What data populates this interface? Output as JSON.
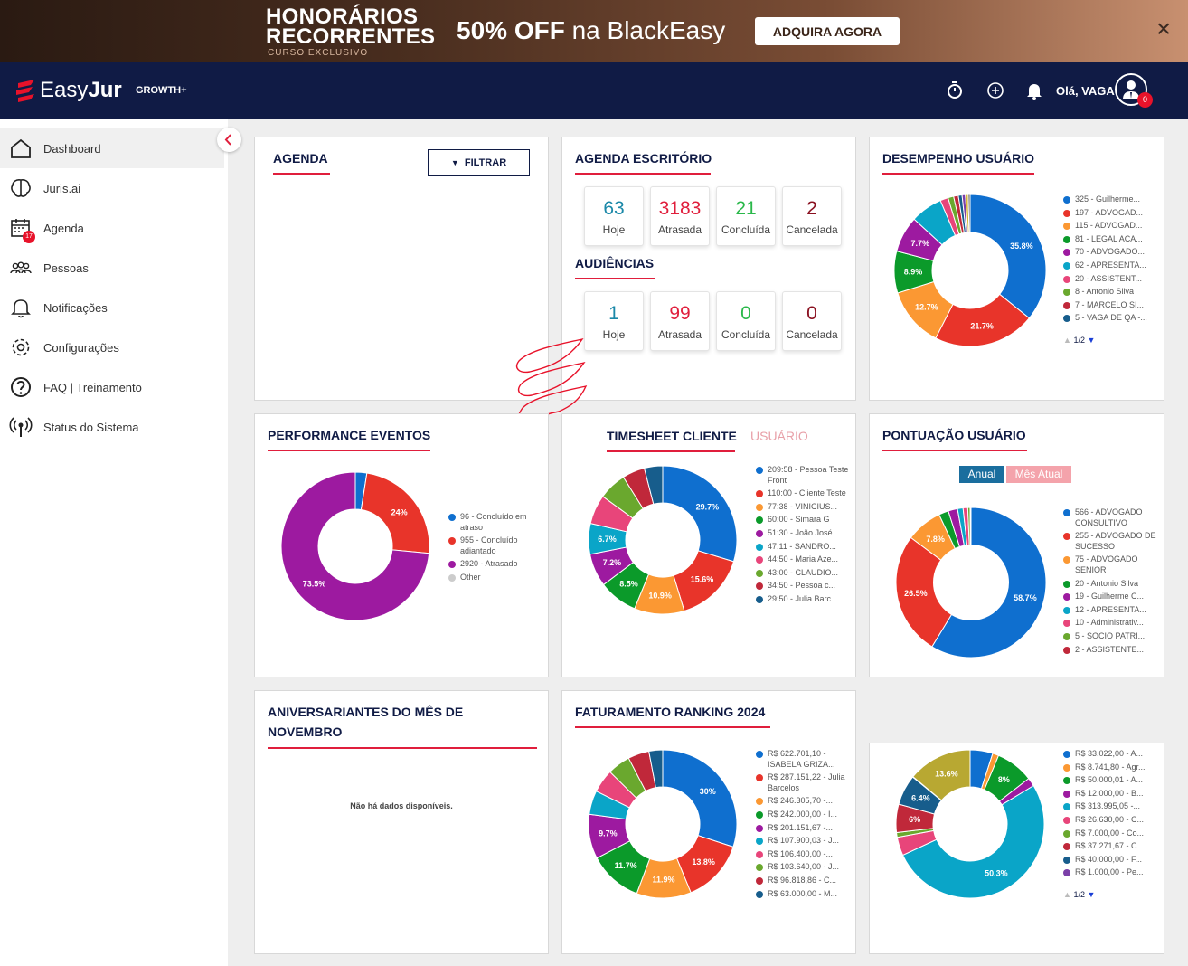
{
  "promo": {
    "title_line1": "HONORÁRIOS",
    "title_line2": "RECORRENTES",
    "subtitle": "CURSO EXCLUSIVO",
    "offer_bold": "50% OFF",
    "offer_rest": " na BlackEasy",
    "cta": "ADQUIRA AGORA",
    "close": "×"
  },
  "header": {
    "logo_light": "Easy",
    "logo_bold": "Jur",
    "plan": "GROWTH+",
    "greeting": "Olá, VAGA",
    "avatar_badge": "0"
  },
  "sidebar": {
    "items": [
      {
        "label": "Dashboard"
      },
      {
        "label": "Juris.ai"
      },
      {
        "label": "Agenda",
        "badge": "17"
      },
      {
        "label": "Pessoas"
      },
      {
        "label": "Notificações"
      },
      {
        "label": "Configurações"
      },
      {
        "label": "FAQ | Treinamento"
      },
      {
        "label": "Status do Sistema"
      }
    ]
  },
  "agenda": {
    "title": "AGENDA",
    "filter_label": "FILTRAR"
  },
  "agenda_escritorio": {
    "title": "AGENDA ESCRITÓRIO",
    "stats": [
      {
        "value": "63",
        "label": "Hoje",
        "color": "#1a88a8"
      },
      {
        "value": "3183",
        "label": "Atrasada",
        "color": "#e01e3c"
      },
      {
        "value": "21",
        "label": "Concluída",
        "color": "#2ab84a"
      },
      {
        "value": "2",
        "label": "Cancelada",
        "color": "#8a1020"
      }
    ],
    "audiencias_title": "AUDIÊNCIAS",
    "audiencias": [
      {
        "value": "1",
        "label": "Hoje",
        "color": "#1a88a8"
      },
      {
        "value": "99",
        "label": "Atrasada",
        "color": "#e01e3c"
      },
      {
        "value": "0",
        "label": "Concluída",
        "color": "#2ab84a"
      },
      {
        "value": "0",
        "label": "Cancelada",
        "color": "#8a1020"
      }
    ]
  },
  "desempenho": {
    "title": "DESEMPENHO USUÁRIO",
    "pager": "1/2",
    "legend": [
      "325 - Guilherme...",
      "197 - ADVOGAD...",
      "115 - ADVOGAD...",
      "81 - LEGAL ACA...",
      "70 - ADVOGADO...",
      "62 - APRESENTA...",
      "20 - ASSISTENT...",
      "8 - Antonio Silva",
      "7 - MARCELO SI...",
      "5 - VAGA DE QA -..."
    ]
  },
  "performance": {
    "title": "PERFORMANCE EVENTOS",
    "legend": [
      "96 - Concluído em atraso",
      "955 - Concluído adiantado",
      "2920 - Atrasado",
      "Other"
    ]
  },
  "timesheet": {
    "title": "TIMESHEET CLIENTE",
    "tab_usuario": "USUÁRIO",
    "legend": [
      "209:58 - Pessoa Teste Front",
      "110:00 - Cliente Teste",
      "77:38 - VINICIUS...",
      "60:00 - Simara G",
      "51:30 - João José",
      "47:11 - SANDRO...",
      "44:50 - Maria Aze...",
      "43:00 - CLAUDIO...",
      "34:50 - Pessoa c...",
      "29:50 - Julia Barc..."
    ]
  },
  "pontuacao": {
    "title": "PONTUAÇÃO USUÁRIO",
    "tab_anual": "Anual",
    "tab_mes": "Mês Atual",
    "legend": [
      "566 - ADVOGADO CONSULTIVO",
      "255 - ADVOGADO DE SUCESSO",
      "75 - ADVOGADO SENIOR",
      "20 - Antonio Silva",
      "19 - Guilherme C...",
      "12 - APRESENTA...",
      "10 - Administrativ...",
      "5 - SOCIO PATRI...",
      "2 - ASSISTENTE..."
    ]
  },
  "aniversariantes": {
    "title_line1": "ANIVERSARIANTES DO MÊS DE",
    "title_line2": "NOVEMBRO",
    "empty": "Não há dados disponíveis."
  },
  "faturamento": {
    "title": "FATURAMENTO RANKING 2024",
    "legend": [
      "R$ 622.701,10 - ISABELA GRIZA...",
      "R$ 287.151,22 - Julia Barcelos",
      "R$ 246.305,70 -...",
      "R$ 242.000,00 - I...",
      "R$ 201.151,67 -...",
      "R$ 107.900,03 - J...",
      "R$ 106.400,00 -...",
      "R$ 103.640,00 - J...",
      "R$ 96.818,86 - C...",
      "R$ 63.000,00 - M..."
    ]
  },
  "faturamento2": {
    "pager": "1/2",
    "legend": [
      "R$ 33.022,00 - A...",
      "R$ 8.741,80 - Agr...",
      "R$ 50.000,01 - A...",
      "R$ 12.000,00 - B...",
      "R$ 313.995,05 -...",
      "R$ 26.630,00 - C...",
      "R$ 7.000,00 - Co...",
      "R$ 37.271,67 - C...",
      "R$ 40.000,00 - F...",
      "R$ 1.000,00 - Pe..."
    ]
  },
  "chart_data": [
    {
      "type": "pie",
      "id": "desempenho",
      "colors": [
        "#0f6fcf",
        "#e8342a",
        "#fb9833",
        "#0b9a2a",
        "#9d1aa0",
        "#0aa5c8",
        "#e8457a",
        "#6aa82e",
        "#c0283a",
        "#175d8c",
        "#7b3fa8",
        "#d6b838",
        "#555555"
      ],
      "values": [
        35.8,
        21.7,
        12.7,
        8.9,
        7.7,
        6.8,
        1.7,
        1.2,
        1.0,
        0.8,
        0.7,
        0.6,
        0.4
      ],
      "labels": [
        "35.8%",
        "21.7%",
        "12.7%",
        "8.9%",
        "7.7%",
        "",
        "",
        "",
        "",
        "",
        "",
        "",
        ""
      ]
    },
    {
      "type": "pie",
      "id": "performance",
      "colors": [
        "#0f6fcf",
        "#e8342a",
        "#9d1aa0"
      ],
      "values": [
        2.5,
        24,
        73.5
      ],
      "labels": [
        "",
        "24%",
        "73.5%"
      ]
    },
    {
      "type": "pie",
      "id": "timesheet",
      "colors": [
        "#0f6fcf",
        "#e8342a",
        "#fb9833",
        "#0b9a2a",
        "#9d1aa0",
        "#0aa5c8",
        "#e8457a",
        "#6aa82e",
        "#c0283a",
        "#175d8c"
      ],
      "values": [
        29.7,
        15.6,
        10.9,
        8.5,
        7.2,
        6.7,
        6.4,
        6.1,
        4.9,
        4.0
      ],
      "labels": [
        "29.7%",
        "15.6%",
        "10.9%",
        "8.5%",
        "7.2%",
        "6.7%",
        "",
        "",
        "",
        ""
      ]
    },
    {
      "type": "pie",
      "id": "pontuacao",
      "colors": [
        "#0f6fcf",
        "#e8342a",
        "#fb9833",
        "#0b9a2a",
        "#9d1aa0",
        "#0aa5c8",
        "#e8457a",
        "#6aa82e",
        "#c0283a"
      ],
      "values": [
        58.7,
        26.5,
        7.8,
        2.1,
        2.0,
        1.2,
        1.0,
        0.5,
        0.2
      ],
      "labels": [
        "58.7%",
        "26.5%",
        "7.8%",
        "",
        "",
        "",
        "",
        "",
        ""
      ]
    },
    {
      "type": "pie",
      "id": "faturamento",
      "colors": [
        "#0f6fcf",
        "#e8342a",
        "#fb9833",
        "#0b9a2a",
        "#9d1aa0",
        "#0aa5c8",
        "#e8457a",
        "#6aa82e",
        "#c0283a",
        "#175d8c"
      ],
      "values": [
        30,
        13.8,
        11.9,
        11.7,
        9.7,
        5.2,
        5.1,
        5.0,
        4.6,
        3.0
      ],
      "labels": [
        "30%",
        "13.8%",
        "11.9%",
        "11.7%",
        "9.7%",
        "",
        "",
        "",
        "",
        ""
      ]
    },
    {
      "type": "pie",
      "id": "faturamento2",
      "colors": [
        "#0f6fcf",
        "#fb9833",
        "#0b9a2a",
        "#9d1aa0",
        "#0aa5c8",
        "#e8457a",
        "#6aa82e",
        "#c0283a",
        "#175d8c",
        "#7b3fa8",
        "#b8a832"
      ],
      "values": [
        4.8,
        1.3,
        8.0,
        1.8,
        50.3,
        3.9,
        1.0,
        6.0,
        6.4,
        0.1,
        13.6
      ],
      "labels": [
        "",
        "",
        "8%",
        "",
        "50.3%",
        "",
        "",
        "6%",
        "6.4%",
        "",
        "13.6%"
      ]
    }
  ]
}
